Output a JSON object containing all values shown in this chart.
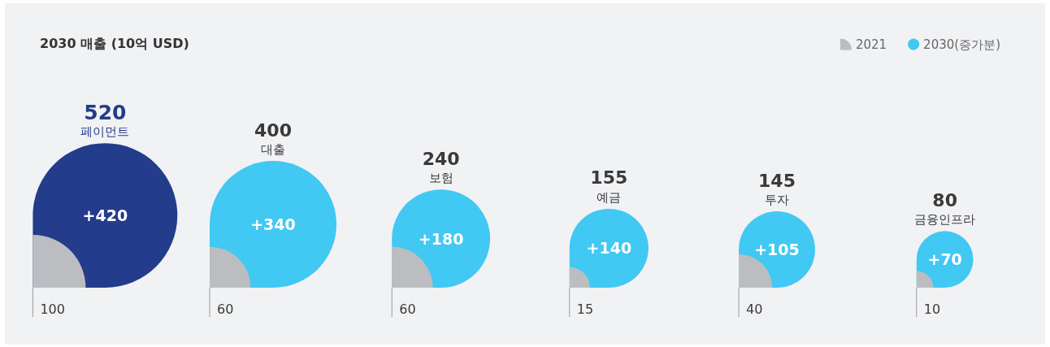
{
  "chart_data": {
    "type": "other",
    "title": "2030 매출 (10억 USD)",
    "legend": "top right",
    "data_labels": true,
    "categories": [
      "페이먼트",
      "대출",
      "보험",
      "예금",
      "투자",
      "금융인프라"
    ],
    "series": [
      {
        "name": "2021",
        "color": "#bcbdc1",
        "values": [
          100,
          60,
          60,
          15,
          40,
          10
        ]
      },
      {
        "name": "2030(증가분)",
        "color": "#41c8f3",
        "colors": [
          "#233c8b",
          "#41c8f3",
          "#41c8f3",
          "#41c8f3",
          "#41c8f3",
          "#41c8f3"
        ],
        "values": [
          420,
          340,
          180,
          140,
          105,
          70
        ],
        "value_labels": [
          "+420",
          "+340",
          "+180",
          "+140",
          "+105",
          "+70"
        ]
      }
    ],
    "totals": [
      "520",
      "400",
      "240",
      "155",
      "145",
      "80"
    ]
  }
}
